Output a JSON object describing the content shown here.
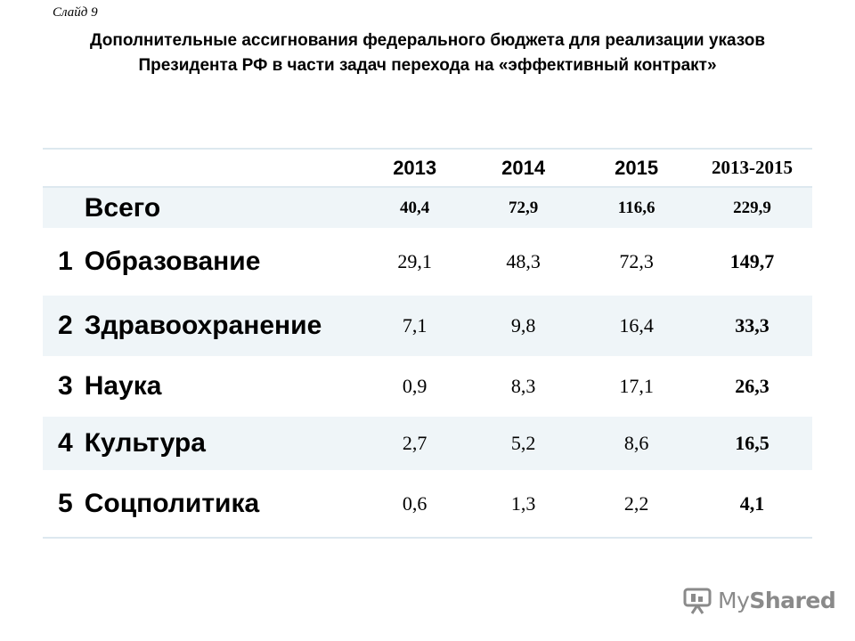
{
  "slide": {
    "label": "Слайд 9",
    "title_line1": "Дополнительные ассигнования федерального бюджета для реализации указов",
    "title_line2": "Президента РФ в части задач перехода на «эффективный контракт»"
  },
  "table": {
    "headers": [
      "2013",
      "2014",
      "2015",
      "2013-2015"
    ],
    "total": {
      "name": "Всего",
      "values": [
        "40,4",
        "72,9",
        "116,6",
        "229,9"
      ]
    },
    "rows": [
      {
        "num": "1",
        "name": "Образование",
        "values": [
          "29,1",
          "48,3",
          "72,3",
          "149,7"
        ]
      },
      {
        "num": "2",
        "name": "Здравоохранение",
        "values": [
          "7,1",
          "9,8",
          "16,4",
          "33,3"
        ]
      },
      {
        "num": "3",
        "name": "Наука",
        "values": [
          "0,9",
          "8,3",
          "17,1",
          "26,3"
        ]
      },
      {
        "num": "4",
        "name": "Культура",
        "values": [
          "2,7",
          "5,2",
          "8,6",
          "16,5"
        ]
      },
      {
        "num": "5",
        "name": "Соцполитика",
        "values": [
          "0,6",
          "1,3",
          "2,2",
          "4,1"
        ]
      }
    ]
  },
  "watermark": {
    "prefix": "My",
    "suffix": "Shared",
    "icon": "presentation-icon"
  }
}
